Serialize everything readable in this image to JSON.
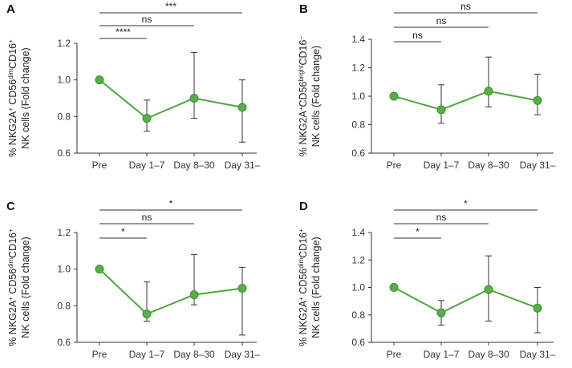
{
  "colors": {
    "line": "#4aa83a",
    "marker": "#56b044",
    "marker_edge": "#3b8f2e",
    "axis": "#333333",
    "error": "#333333"
  },
  "chart_data": [
    {
      "panel_label": "A",
      "type": "line",
      "categories": [
        "Pre",
        "Day 1–7",
        "Day 8–30",
        "Day 31–"
      ],
      "values": [
        1.0,
        0.79,
        0.9,
        0.85
      ],
      "error_low": [
        1.0,
        0.72,
        0.79,
        0.66
      ],
      "error_high": [
        1.0,
        0.89,
        1.15,
        1.0
      ],
      "ylim": [
        0.6,
        1.2
      ],
      "yticks": [
        0.6,
        0.8,
        1.0,
        1.2
      ],
      "ylabel_line1": [
        "% NKG2A",
        "+",
        " CD56",
        "dim",
        "CD16",
        "+"
      ],
      "ylabel_line2": "NK cells (Fold change)",
      "significance": [
        {
          "from": 0,
          "to": 1,
          "label": "****"
        },
        {
          "from": 0,
          "to": 2,
          "label": "ns"
        },
        {
          "from": 0,
          "to": 3,
          "label": "***"
        }
      ]
    },
    {
      "panel_label": "B",
      "type": "line",
      "categories": [
        "Pre",
        "Day 1–7",
        "Day 8–30",
        "Day 31–"
      ],
      "values": [
        1.0,
        0.905,
        1.035,
        0.97
      ],
      "error_low": [
        1.0,
        0.81,
        0.925,
        0.87
      ],
      "error_high": [
        1.0,
        1.08,
        1.275,
        1.155
      ],
      "ylim": [
        0.6,
        1.4
      ],
      "yticks": [
        0.6,
        0.8,
        1.0,
        1.2,
        1.4
      ],
      "ylabel_line1": [
        "% NKG2A",
        "+",
        "CD56",
        "bright",
        "CD16",
        "−"
      ],
      "ylabel_line2": "NK cells (Fold change)",
      "significance": [
        {
          "from": 0,
          "to": 1,
          "label": "ns"
        },
        {
          "from": 0,
          "to": 2,
          "label": "ns"
        },
        {
          "from": 0,
          "to": 3,
          "label": "ns"
        }
      ]
    },
    {
      "panel_label": "C",
      "type": "line",
      "categories": [
        "Pre",
        "Day 1–7",
        "Day 8–30",
        "Day 31–"
      ],
      "values": [
        1.0,
        0.755,
        0.86,
        0.895
      ],
      "error_low": [
        1.0,
        0.715,
        0.805,
        0.64
      ],
      "error_high": [
        1.0,
        0.93,
        1.08,
        1.01
      ],
      "ylim": [
        0.6,
        1.2
      ],
      "yticks": [
        0.6,
        0.8,
        1.0,
        1.2
      ],
      "ylabel_line1": [
        "% NKG2A",
        "+",
        " CD56",
        "dim",
        "CD16",
        "+"
      ],
      "ylabel_line2": "NK cells (Fold change)",
      "significance": [
        {
          "from": 0,
          "to": 1,
          "label": "*"
        },
        {
          "from": 0,
          "to": 2,
          "label": "ns"
        },
        {
          "from": 0,
          "to": 3,
          "label": "*"
        }
      ]
    },
    {
      "panel_label": "D",
      "type": "line",
      "categories": [
        "Pre",
        "Day 1–7",
        "Day 8–30",
        "Day 31–"
      ],
      "values": [
        1.0,
        0.815,
        0.985,
        0.85
      ],
      "error_low": [
        1.0,
        0.725,
        0.755,
        0.67
      ],
      "error_high": [
        1.0,
        0.905,
        1.23,
        1.0
      ],
      "ylim": [
        0.6,
        1.4
      ],
      "yticks": [
        0.6,
        0.8,
        1.0,
        1.2,
        1.4
      ],
      "ylabel_line1": [
        "% NKG2A",
        "+",
        " CD56",
        "dim",
        "CD16",
        "+"
      ],
      "ylabel_line2": "NK cells (Fold change)",
      "significance": [
        {
          "from": 0,
          "to": 1,
          "label": "*"
        },
        {
          "from": 0,
          "to": 2,
          "label": "ns"
        },
        {
          "from": 0,
          "to": 3,
          "label": "*"
        }
      ]
    }
  ]
}
